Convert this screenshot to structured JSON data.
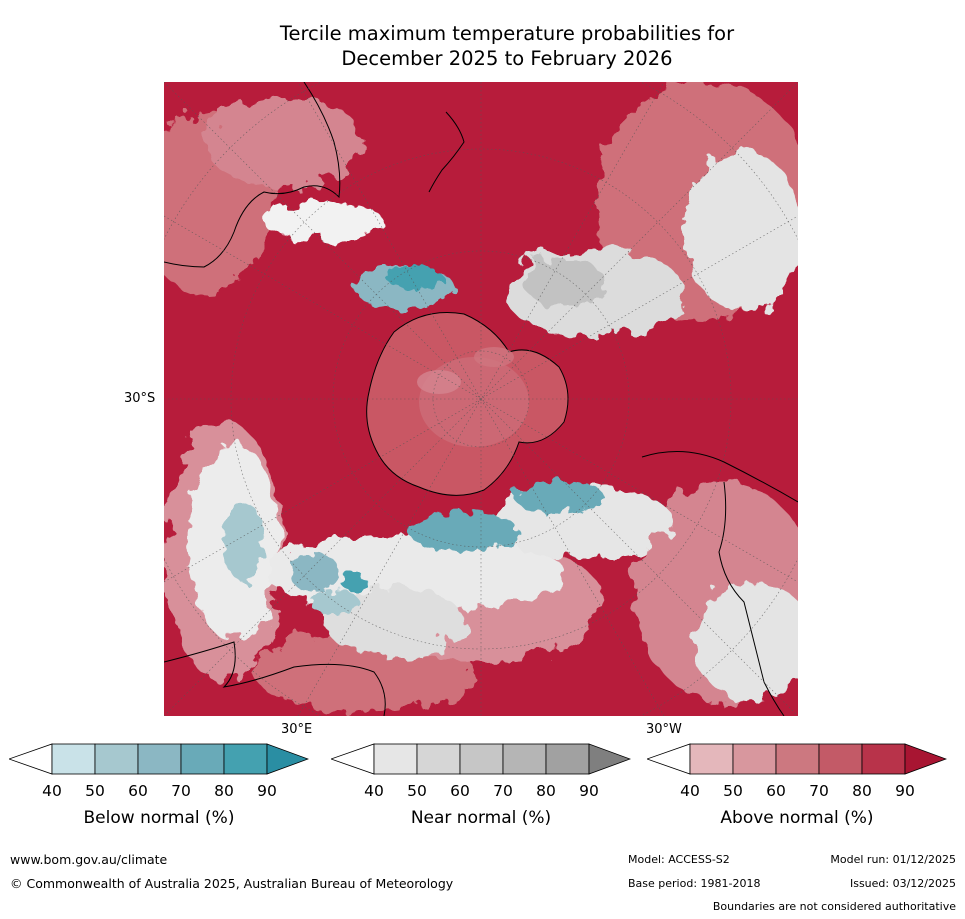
{
  "title_line1": "Tercile maximum temperature probabilities for",
  "title_line2": "December 2025 to February 2026",
  "map": {
    "projection": "south-polar-stereographic",
    "lat_label": "30°S",
    "lon_label_east": "30°E",
    "lon_label_west": "30°W",
    "background_color": "#b71c3b",
    "land_outline_color": "#000000"
  },
  "colorbars": [
    {
      "title": "Below normal (%)",
      "ticks": [
        "40",
        "50",
        "60",
        "70",
        "80",
        "90"
      ],
      "colors": [
        "#ffffff",
        "#c9e2e8",
        "#a6c8cf",
        "#8bb7c3",
        "#69aab8",
        "#44a1b0",
        "#2a8ea3"
      ]
    },
    {
      "title": "Near normal (%)",
      "ticks": [
        "40",
        "50",
        "60",
        "70",
        "80",
        "90"
      ],
      "colors": [
        "#ffffff",
        "#e6e6e6",
        "#d6d6d6",
        "#c6c6c6",
        "#b5b5b5",
        "#a1a1a1",
        "#7f7f7f"
      ]
    },
    {
      "title": "Above normal (%)",
      "ticks": [
        "40",
        "50",
        "60",
        "70",
        "80",
        "90"
      ],
      "colors": [
        "#ffffff",
        "#e4b7bb",
        "#d8979e",
        "#cc7880",
        "#c35a67",
        "#b8334a",
        "#a81532"
      ]
    }
  ],
  "footer": {
    "website": "www.bom.gov.au/climate",
    "copyright": "© Commonwealth of Australia 2025, Australian Bureau of Meteorology",
    "model": "Model: ACCESS-S2",
    "model_run": "Model run: 01/12/2025",
    "base_period": "Base period: 1981-2018",
    "issued": "Issued: 03/12/2025",
    "disclaimer": "Boundaries are not considered authoritative"
  }
}
